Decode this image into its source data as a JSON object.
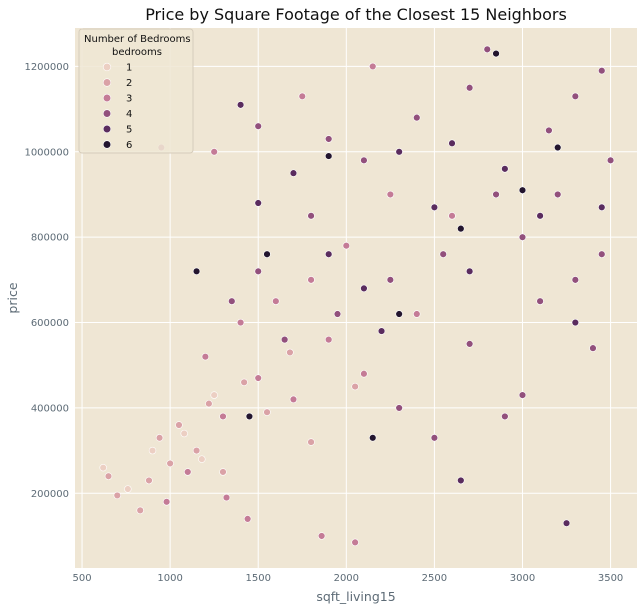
{
  "chart_data": {
    "type": "scatter",
    "title": "Price by Square Footage of the Closest 15 Neighbors",
    "xlabel": "sqft_living15",
    "ylabel": "price",
    "xlim": [
      460,
      3650
    ],
    "ylim": [
      25000,
      1290000
    ],
    "xticks": [
      500,
      1000,
      1500,
      2000,
      2500,
      3000,
      3500
    ],
    "yticks": [
      200000,
      400000,
      600000,
      800000,
      1000000,
      1200000
    ],
    "grid": true,
    "background": "#efe6d4",
    "grid_color": "#ffffff",
    "legend": {
      "title": "Number of Bedrooms",
      "subtitle": "bedrooms",
      "placement": "top-left",
      "entries": [
        {
          "label": "1",
          "color": "#eccfc3"
        },
        {
          "label": "2",
          "color": "#daa2a6"
        },
        {
          "label": "3",
          "color": "#c47b96"
        },
        {
          "label": "4",
          "color": "#92507c"
        },
        {
          "label": "5",
          "color": "#5a2c5e"
        },
        {
          "label": "6",
          "color": "#23152e"
        }
      ]
    },
    "bedroom_colors": {
      "1": "#eccfc3",
      "2": "#daa2a6",
      "3": "#c47b96",
      "4": "#92507c",
      "5": "#5a2c5e",
      "6": "#23152e"
    },
    "series": [
      {
        "name": "1",
        "points": [
          [
            620,
            260000
          ],
          [
            760,
            210000
          ],
          [
            900,
            300000
          ],
          [
            1080,
            340000
          ],
          [
            1180,
            280000
          ],
          [
            1250,
            430000
          ]
        ]
      },
      {
        "name": "2",
        "points": [
          [
            650,
            240000
          ],
          [
            700,
            195000
          ],
          [
            830,
            160000
          ],
          [
            880,
            230000
          ],
          [
            940,
            330000
          ],
          [
            1000,
            270000
          ],
          [
            1050,
            360000
          ],
          [
            1150,
            300000
          ],
          [
            1220,
            410000
          ],
          [
            1300,
            250000
          ],
          [
            1420,
            460000
          ],
          [
            1550,
            390000
          ],
          [
            1680,
            530000
          ],
          [
            1800,
            320000
          ],
          [
            2050,
            450000
          ]
        ]
      },
      {
        "name": "3",
        "points": [
          [
            980,
            180000
          ],
          [
            1100,
            250000
          ],
          [
            1200,
            520000
          ],
          [
            1300,
            380000
          ],
          [
            1400,
            600000
          ],
          [
            1500,
            470000
          ],
          [
            1600,
            650000
          ],
          [
            1700,
            420000
          ],
          [
            1800,
            700000
          ],
          [
            1900,
            560000
          ],
          [
            2000,
            780000
          ],
          [
            2100,
            480000
          ],
          [
            2250,
            900000
          ],
          [
            2400,
            620000
          ],
          [
            2600,
            850000
          ],
          [
            1750,
            1130000
          ],
          [
            2150,
            1200000
          ],
          [
            950,
            1010000
          ],
          [
            1250,
            1000000
          ],
          [
            1320,
            190000
          ],
          [
            1440,
            140000
          ],
          [
            1860,
            100000
          ],
          [
            2050,
            85000
          ]
        ]
      },
      {
        "name": "4",
        "points": [
          [
            1350,
            650000
          ],
          [
            1500,
            720000
          ],
          [
            1650,
            560000
          ],
          [
            1800,
            850000
          ],
          [
            1950,
            620000
          ],
          [
            2100,
            980000
          ],
          [
            2250,
            700000
          ],
          [
            2400,
            1080000
          ],
          [
            2550,
            760000
          ],
          [
            2700,
            1150000
          ],
          [
            2850,
            900000
          ],
          [
            3000,
            800000
          ],
          [
            3150,
            1050000
          ],
          [
            3300,
            700000
          ],
          [
            3450,
            760000
          ],
          [
            3450,
            1190000
          ],
          [
            3300,
            1130000
          ],
          [
            3500,
            980000
          ],
          [
            3000,
            430000
          ],
          [
            2800,
            1240000
          ],
          [
            3400,
            540000
          ],
          [
            1500,
            1060000
          ],
          [
            2900,
            380000
          ],
          [
            1900,
            1030000
          ],
          [
            2500,
            330000
          ],
          [
            3100,
            650000
          ],
          [
            2700,
            550000
          ],
          [
            2300,
            400000
          ],
          [
            3200,
            900000
          ]
        ]
      },
      {
        "name": "5",
        "points": [
          [
            1500,
            880000
          ],
          [
            1700,
            950000
          ],
          [
            1900,
            760000
          ],
          [
            2100,
            680000
          ],
          [
            2300,
            1000000
          ],
          [
            2500,
            870000
          ],
          [
            2700,
            720000
          ],
          [
            2900,
            960000
          ],
          [
            3100,
            850000
          ],
          [
            3300,
            600000
          ],
          [
            1400,
            1110000
          ],
          [
            3250,
            130000
          ],
          [
            2650,
            230000
          ],
          [
            2200,
            580000
          ],
          [
            2600,
            1020000
          ],
          [
            3450,
            870000
          ]
        ]
      },
      {
        "name": "6",
        "points": [
          [
            1150,
            720000
          ],
          [
            1550,
            760000
          ],
          [
            1900,
            990000
          ],
          [
            2300,
            620000
          ],
          [
            2650,
            820000
          ],
          [
            3000,
            910000
          ],
          [
            1450,
            380000
          ],
          [
            2150,
            330000
          ],
          [
            3200,
            1010000
          ],
          [
            2850,
            1230000
          ]
        ]
      }
    ]
  }
}
